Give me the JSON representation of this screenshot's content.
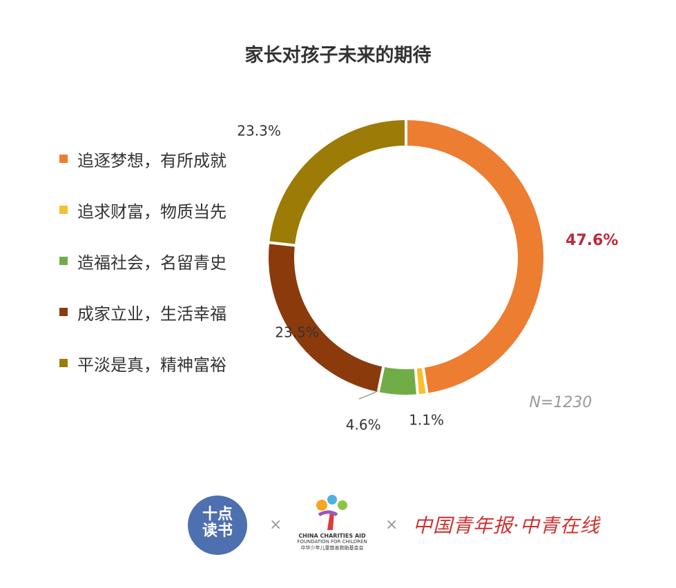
{
  "chart_data": {
    "type": "pie",
    "title": "家长对孩子未来的期待",
    "note": "N=1230",
    "categories": [
      "追逐梦想，有所成就",
      "追求财富，物质当先",
      "造福社会，名留青史",
      "成家立业，生活幸福",
      "平淡是真，精神富裕"
    ],
    "values": [
      47.6,
      1.1,
      4.6,
      23.5,
      23.3
    ],
    "labels": [
      "47.6%",
      "1.1%",
      "4.6%",
      "23.5%",
      "23.3%"
    ],
    "colors": [
      "#ed7d31",
      "#f5c030",
      "#70ad47",
      "#8b3a0c",
      "#9c7b06"
    ],
    "highlight_color": "#c0293b",
    "legend_position": "left"
  },
  "logos": {
    "left_line1": "十点",
    "left_line2": "读书",
    "separator": "×",
    "middle_name": "CHINA CHARITIES AID",
    "middle_sub": "FOUNDATION FOR CHILDREN",
    "middle_cn": "中华少年儿童慈善救助基金会",
    "right": "中国青年报·中青在线"
  }
}
